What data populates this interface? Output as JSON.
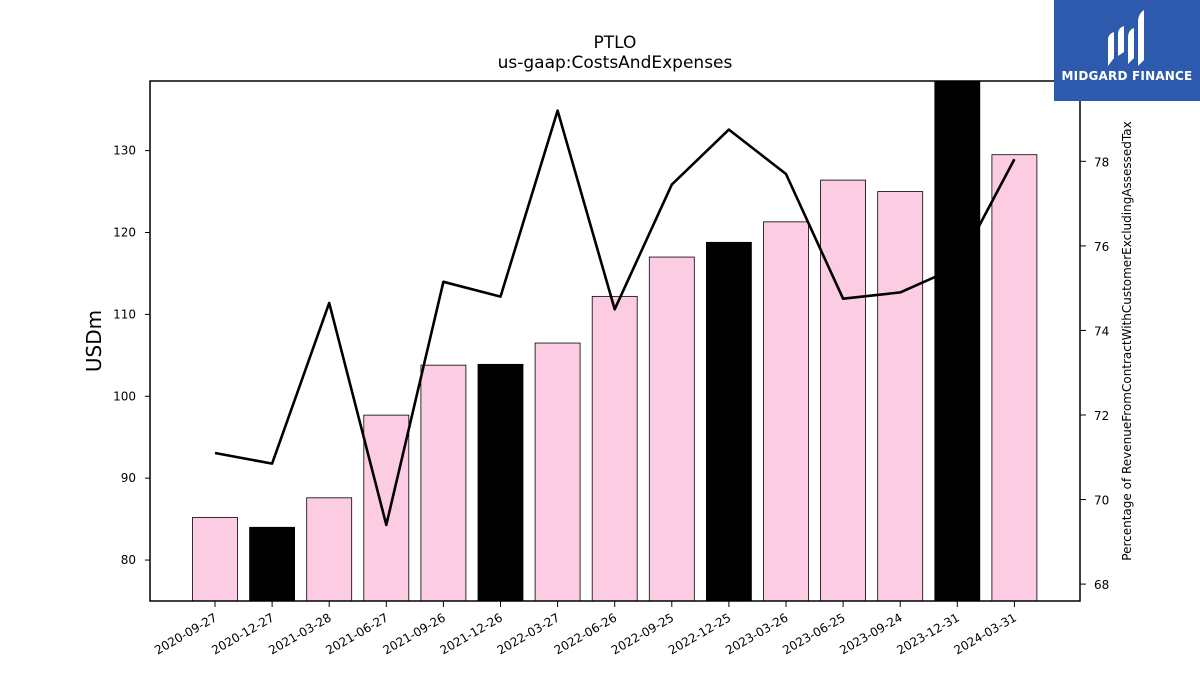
{
  "chart_data": {
    "type": "bar",
    "title": "PTLO",
    "subtitle": "us-gaap:CostsAndExpenses",
    "ylabel": "USDm",
    "y2label": "Percentage of RevenueFromContractWithCustomerExcludingAssessedTax",
    "categories": [
      "2020-09-27",
      "2020-12-27",
      "2021-03-28",
      "2021-06-27",
      "2021-09-26",
      "2021-12-26",
      "2022-03-27",
      "2022-06-26",
      "2022-09-25",
      "2022-12-25",
      "2023-03-26",
      "2023-06-25",
      "2023-09-24",
      "2023-12-31",
      "2024-03-31"
    ],
    "series": [
      {
        "type": "bar",
        "values": [
          85.2,
          84.0,
          87.6,
          97.7,
          103.8,
          103.9,
          106.5,
          112.2,
          117.0,
          118.8,
          121.3,
          126.4,
          125.0,
          138.5,
          129.5
        ],
        "highlight": [
          false,
          true,
          false,
          false,
          false,
          true,
          false,
          false,
          false,
          true,
          false,
          false,
          false,
          true,
          false
        ]
      },
      {
        "type": "line",
        "axis": "right",
        "values": [
          71.1,
          70.85,
          74.65,
          69.4,
          75.15,
          74.8,
          79.2,
          74.5,
          77.45,
          78.75,
          77.7,
          74.75,
          74.9,
          75.5,
          78.05
        ]
      }
    ],
    "ylim": [
      75,
      138.5
    ],
    "y2lim": [
      67.6,
      79.9
    ],
    "yticks": [
      80,
      90,
      100,
      110,
      120,
      130
    ],
    "y2ticks": [
      68,
      70,
      72,
      74,
      76,
      78
    ],
    "colors": {
      "bar": "#fccce3",
      "highlight": "#000000",
      "line": "#000000"
    }
  },
  "logo": {
    "text": "MIDGARD FINANCE",
    "background": "#2d5aad"
  }
}
